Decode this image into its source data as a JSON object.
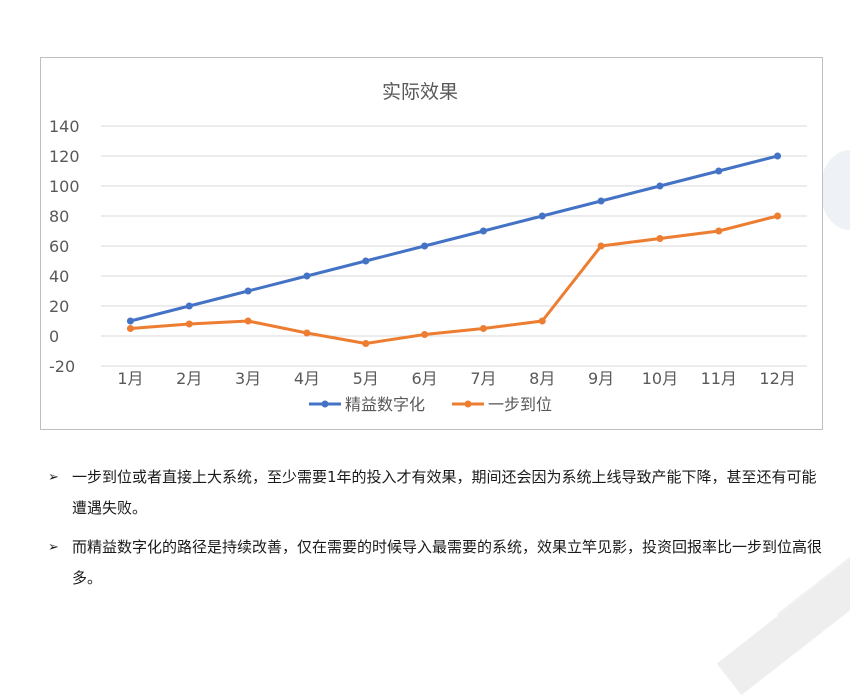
{
  "chart_data": {
    "type": "line",
    "title": "实际效果",
    "categories": [
      "1月",
      "2月",
      "3月",
      "4月",
      "5月",
      "6月",
      "7月",
      "8月",
      "9月",
      "10月",
      "11月",
      "12月"
    ],
    "series": [
      {
        "name": "精益数字化",
        "color": "#4472C4",
        "values": [
          10,
          20,
          30,
          40,
          50,
          60,
          70,
          80,
          90,
          100,
          110,
          120
        ]
      },
      {
        "name": "一步到位",
        "color": "#ED7D31",
        "values": [
          5,
          8,
          10,
          2,
          -5,
          1,
          5,
          10,
          60,
          65,
          70,
          80
        ]
      }
    ],
    "ylim": [
      -20,
      140
    ],
    "yticks": [
      140,
      120,
      100,
      80,
      60,
      40,
      20,
      0,
      -20
    ],
    "grid": true,
    "legend": "bottom"
  },
  "bullets": [
    {
      "marker": "➢",
      "text": "一步到位或者直接上大系统，至少需要1年的投入才有效果，期间还会因为系统上线导致产能下降，甚至还有可能遭遇失败。"
    },
    {
      "marker": "➢",
      "text": "而精益数字化的路径是持续改善，仅在需要的时候导入最需要的系统，效果立竿见影，投资回报率比一步到位高很多。"
    }
  ]
}
